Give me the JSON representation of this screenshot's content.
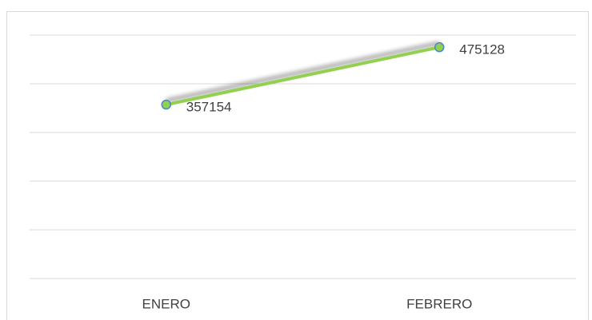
{
  "chart_data": {
    "type": "line",
    "categories": [
      "ENERO",
      "FEBRERO"
    ],
    "series": [
      {
        "name": "",
        "color": "#92d050",
        "marker_edge": "#4a86c8",
        "values": [
          357154,
          475128
        ]
      }
    ],
    "ylim": [
      0,
      500000
    ],
    "yticks": [
      0,
      100000,
      200000,
      300000,
      400000,
      500000
    ],
    "grid": true
  }
}
